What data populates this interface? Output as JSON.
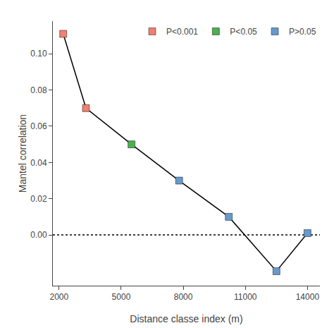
{
  "chart_data": {
    "type": "line",
    "x": [
      2200,
      3300,
      5500,
      7800,
      10200,
      12500,
      14000
    ],
    "series": [
      {
        "type": "line",
        "color": "black",
        "values": [
          0.111,
          0.07,
          0.05,
          0.03,
          0.01,
          -0.02,
          0.001
        ]
      },
      {
        "name": "P<0.001",
        "type": "scatter",
        "marker": "square",
        "color": "#f08070",
        "values": [
          0.111,
          0.07,
          null,
          null,
          null,
          null,
          null
        ]
      },
      {
        "name": "P<0.05",
        "type": "scatter",
        "marker": "square",
        "color": "#4caf50",
        "values": [
          null,
          null,
          0.05,
          null,
          null,
          null,
          null
        ]
      },
      {
        "name": "P>0.05",
        "type": "scatter",
        "marker": "square",
        "color": "#6699cc",
        "values": [
          null,
          null,
          null,
          0.03,
          0.01,
          -0.02,
          0.001
        ]
      }
    ],
    "reference_line": {
      "y": 0.0,
      "color": "black",
      "line_style": "dotted"
    },
    "xlabel": "Distance classe index (m)",
    "ylabel": "Mantel correlation",
    "xlim": [
      1700,
      14600
    ],
    "ylim": [
      -0.028,
      0.118
    ],
    "xticks": [
      2000,
      5000,
      8000,
      11000,
      14000
    ],
    "yticks": [
      {
        "value": 0.0,
        "label": "0.00"
      },
      0.02,
      0.04,
      0.06,
      0.08,
      {
        "value": 0.1,
        "label": "0.10"
      }
    ],
    "grid": false,
    "legend": "upper right"
  }
}
